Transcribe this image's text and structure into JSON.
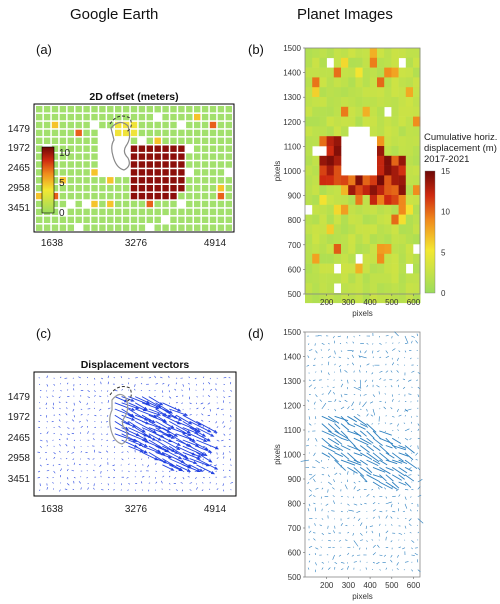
{
  "headers": {
    "left": "Google Earth",
    "right": "Planet Images"
  },
  "panels": {
    "a": {
      "label": "(a)",
      "title": "2D offset (meters)"
    },
    "b": {
      "label": "(b)",
      "colorbar_title": "Cumulative horiz.\ndisplacement (m)\n2017-2021"
    },
    "c": {
      "label": "(c)",
      "title": "Displacement vectors"
    },
    "d": {
      "label": "(d)"
    }
  },
  "colors": {
    "green": "#a2e06c",
    "darkred": "#8b0e0a",
    "vector_blue": "#1f3fe0",
    "vector_cyan": "#2b7fbf"
  },
  "chart_data": [
    {
      "id": "a",
      "type": "heatmap",
      "title": "2D offset (meters)",
      "x_ticks": [
        1638,
        3276,
        4914
      ],
      "y_ticks": [
        1479,
        1972,
        2465,
        2958,
        3451
      ],
      "colorbar": {
        "min": 0,
        "max": 10,
        "ticks": [
          0,
          5,
          10
        ],
        "colormap": "green-yellow-red"
      },
      "values_summary": "mostly ~0 m, core cluster ~10 m"
    },
    {
      "id": "b",
      "type": "heatmap",
      "xlabel": "pixels",
      "ylabel": "pixels",
      "xlim": [
        100,
        630
      ],
      "ylim": [
        500,
        1500
      ],
      "x_ticks": [
        200,
        300,
        400,
        500,
        600
      ],
      "y_ticks": [
        500,
        600,
        700,
        800,
        900,
        1000,
        1100,
        1200,
        1300,
        1400,
        1500
      ],
      "colorbar": {
        "title": "Cumulative horiz.\ndisplacement (m)\n2017-2021",
        "min": 0,
        "max": 15,
        "ticks": [
          0,
          5,
          10,
          15
        ],
        "colormap": "green-yellow-red"
      }
    },
    {
      "id": "c",
      "type": "scatter",
      "subtype": "quiver",
      "title": "Displacement vectors",
      "x_ticks": [
        1638,
        3276,
        4914
      ],
      "y_ticks": [
        1479,
        1972,
        2465,
        2958,
        3451
      ]
    },
    {
      "id": "d",
      "type": "scatter",
      "subtype": "quiver",
      "xlabel": "pixels",
      "ylabel": "pixels",
      "xlim": [
        100,
        630
      ],
      "ylim": [
        500,
        1500
      ],
      "x_ticks": [
        200,
        300,
        400,
        500,
        600
      ],
      "y_ticks": [
        500,
        600,
        700,
        800,
        900,
        1000,
        1100,
        1200,
        1300,
        1400,
        1500
      ]
    }
  ]
}
